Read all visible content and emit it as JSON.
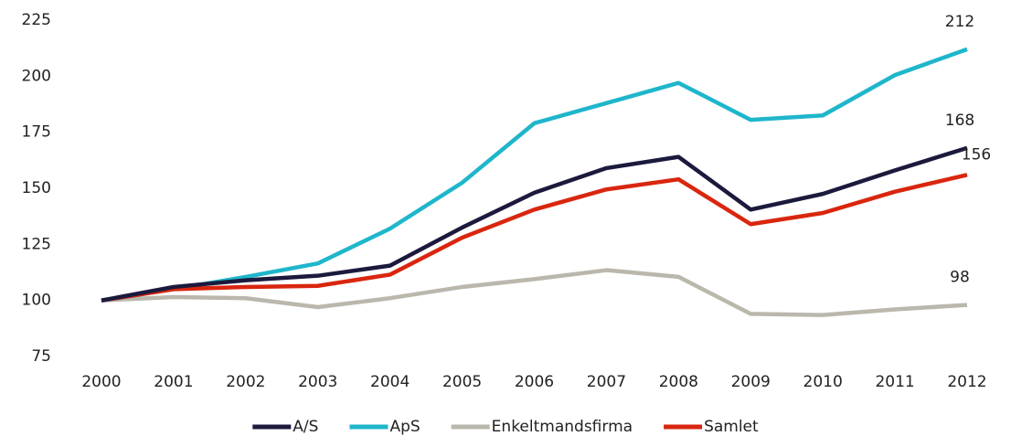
{
  "chart_data": {
    "type": "line",
    "x": [
      "2000",
      "2001",
      "2002",
      "2003",
      "2004",
      "2005",
      "2006",
      "2007",
      "2008",
      "2009",
      "2010",
      "2011",
      "2012"
    ],
    "series": [
      {
        "name": "A/S",
        "color": "#1b1a3d",
        "values": [
          100,
          106,
          109,
          111,
          115.5,
          132.5,
          148,
          159,
          164,
          140.5,
          147.5,
          158,
          168
        ]
      },
      {
        "name": "ApS",
        "color": "#1fb6cb",
        "values": [
          100,
          105,
          110.5,
          116.5,
          132,
          152.5,
          179,
          188,
          197,
          180.5,
          182.5,
          200.5,
          212
        ]
      },
      {
        "name": "Enkeltmandsfirma",
        "color": "#bab7ad",
        "values": [
          100,
          101.5,
          101,
          97,
          101,
          106,
          109.5,
          113.5,
          110.5,
          94,
          93.5,
          96,
          98
        ]
      },
      {
        "name": "Samlet",
        "color": "#d9260f",
        "values": [
          100,
          105,
          106,
          106.5,
          111.5,
          128,
          140.5,
          149.5,
          154,
          134,
          139,
          148.5,
          156
        ]
      }
    ],
    "ylim": [
      75,
      225
    ],
    "yticks": [
      75,
      100,
      125,
      150,
      175,
      200,
      225
    ],
    "grid": false,
    "legend": "bottom"
  }
}
